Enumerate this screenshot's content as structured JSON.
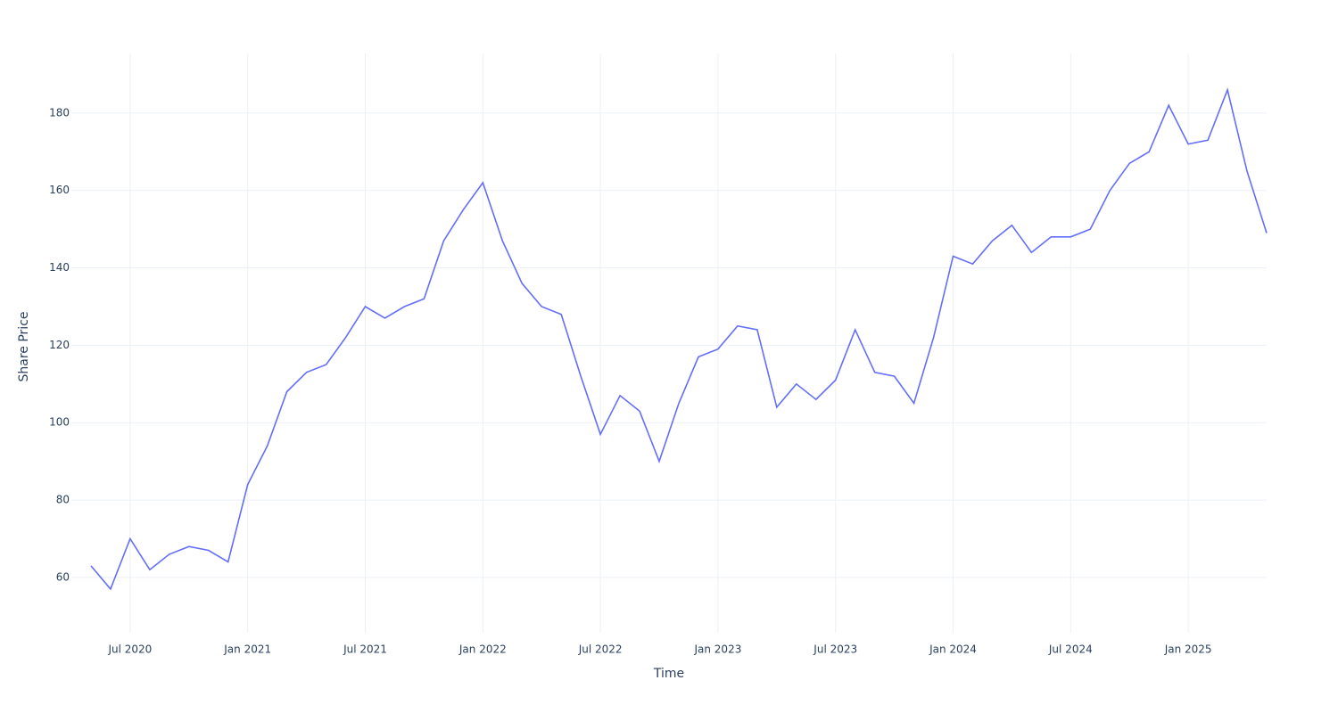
{
  "chart_data": {
    "type": "line",
    "x_label": "Time",
    "y_label": "Share Price",
    "x": [
      "2020-05",
      "2020-06",
      "2020-07",
      "2020-08",
      "2020-09",
      "2020-10",
      "2020-11",
      "2020-12",
      "2021-01",
      "2021-02",
      "2021-03",
      "2021-04",
      "2021-05",
      "2021-06",
      "2021-07",
      "2021-08",
      "2021-09",
      "2021-10",
      "2021-11",
      "2021-12",
      "2022-01",
      "2022-02",
      "2022-03",
      "2022-04",
      "2022-05",
      "2022-06",
      "2022-07",
      "2022-08",
      "2022-09",
      "2022-10",
      "2022-11",
      "2022-12",
      "2023-01",
      "2023-02",
      "2023-03",
      "2023-04",
      "2023-05",
      "2023-06",
      "2023-07",
      "2023-08",
      "2023-09",
      "2023-10",
      "2023-11",
      "2023-12",
      "2024-01",
      "2024-02",
      "2024-03",
      "2024-04",
      "2024-05",
      "2024-06",
      "2024-07",
      "2024-08",
      "2024-09",
      "2024-10",
      "2024-11",
      "2024-12",
      "2025-01",
      "2025-02",
      "2025-03",
      "2025-04",
      "2025-05"
    ],
    "series": [
      {
        "name": "Share Price",
        "color": "#636efa",
        "values": [
          63,
          57,
          70,
          62,
          66,
          68,
          67,
          64,
          84,
          94,
          108,
          113,
          115,
          122,
          130,
          127,
          130,
          132,
          147,
          155,
          162,
          147,
          136,
          130,
          128,
          112,
          97,
          107,
          103,
          90,
          105,
          117,
          119,
          125,
          124,
          104,
          110,
          106,
          111,
          124,
          113,
          112,
          105,
          122,
          143,
          141,
          147,
          151,
          144,
          148,
          148,
          150,
          160,
          167,
          170,
          182,
          172,
          173,
          186,
          165,
          149
        ]
      }
    ],
    "xlim": [
      "2020-04",
      "2025-05"
    ],
    "xticks": [
      {
        "value": "2020-07",
        "label": "Jul 2020"
      },
      {
        "value": "2021-01",
        "label": "Jan 2021"
      },
      {
        "value": "2021-07",
        "label": "Jul 2021"
      },
      {
        "value": "2022-01",
        "label": "Jan 2022"
      },
      {
        "value": "2022-07",
        "label": "Jul 2022"
      },
      {
        "value": "2023-01",
        "label": "Jan 2023"
      },
      {
        "value": "2023-07",
        "label": "Jul 2023"
      },
      {
        "value": "2024-01",
        "label": "Jan 2024"
      },
      {
        "value": "2024-07",
        "label": "Jul 2024"
      },
      {
        "value": "2025-01",
        "label": "Jan 2025"
      }
    ],
    "ylim": [
      45.7,
      195.4
    ],
    "yticks": [
      60,
      80,
      100,
      120,
      140,
      160,
      180
    ],
    "grid": true
  }
}
